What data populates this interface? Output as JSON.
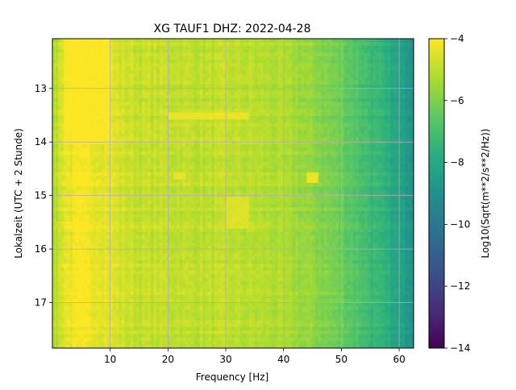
{
  "chart_data": {
    "type": "heatmap",
    "title": "XG TAUF1  DHZ: 2022-04-28",
    "xlabel": "Frequency [Hz]",
    "ylabel": "Lokalzeit (UTC + 2 Stunde)",
    "xlim": [
      0,
      62.5
    ],
    "ylim": [
      12.07,
      17.85
    ],
    "y_inverted": true,
    "x_ticks": [
      10,
      20,
      30,
      40,
      50,
      60
    ],
    "y_ticks": [
      13,
      14,
      15,
      16,
      17
    ],
    "grid": true,
    "colormap": "viridis",
    "colorbar": {
      "label": "Log10(Sqrt(m**2/s**2/Hz))",
      "range": [
        -14,
        -4
      ],
      "ticks": [
        -4,
        -6,
        -8,
        -10,
        -12,
        -14
      ]
    },
    "profile": {
      "description": "approximate median level vs frequency",
      "frequency_hz": [
        0.5,
        2,
        5,
        9,
        12,
        15,
        20,
        25,
        30,
        35,
        40,
        45,
        50,
        55,
        58,
        60,
        62.5
      ],
      "value": [
        -5.2,
        -4.3,
        -4.15,
        -4.3,
        -4.7,
        -4.9,
        -4.9,
        -5.0,
        -5.0,
        -5.1,
        -5.3,
        -5.7,
        -6.3,
        -7.2,
        -7.8,
        -8.3,
        -8.8
      ]
    },
    "features": [
      {
        "frequency_hz": [
          2,
          10
        ],
        "time": [
          12.07,
          14.05
        ],
        "value": -4.05
      },
      {
        "frequency_hz": [
          20,
          34
        ],
        "time": [
          13.48,
          13.55
        ],
        "value": -4.3
      },
      {
        "frequency_hz": [
          30,
          34
        ],
        "time": [
          15.0,
          15.6
        ],
        "value": -4.5
      },
      {
        "frequency_hz": [
          21,
          23
        ],
        "time": [
          14.55,
          14.7
        ],
        "value": -4.3
      },
      {
        "frequency_hz": [
          44,
          46
        ],
        "time": [
          14.55,
          14.75
        ],
        "value": -4.3
      }
    ]
  }
}
